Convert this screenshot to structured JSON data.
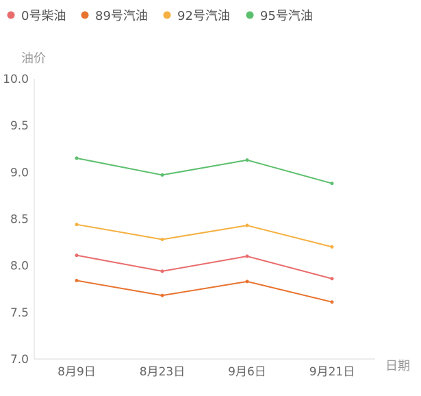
{
  "chart_data": {
    "type": "line",
    "title": "",
    "xlabel": "日期",
    "ylabel": "油价",
    "categories": [
      "8月9日",
      "8月23日",
      "9月6日",
      "9月21日"
    ],
    "ylim": [
      7.0,
      10.0
    ],
    "yticks": [
      "7.0",
      "7.5",
      "8.0",
      "8.5",
      "9.0",
      "9.5",
      "10.0"
    ],
    "grid": false,
    "legend_position": "top-left",
    "series": [
      {
        "name": "0号柴油",
        "color": "#e96c6c",
        "values": [
          8.11,
          7.94,
          8.1,
          7.86
        ]
      },
      {
        "name": "89号汽油",
        "color": "#e8732e",
        "values": [
          7.84,
          7.68,
          7.83,
          7.61
        ]
      },
      {
        "name": "92号汽油",
        "color": "#f5b041",
        "values": [
          8.44,
          8.28,
          8.43,
          8.2
        ]
      },
      {
        "name": "95号汽油",
        "color": "#5cbf6e",
        "values": [
          9.15,
          8.97,
          9.13,
          8.88
        ]
      }
    ],
    "colors": {
      "axis": "#d9d9d9",
      "tick_text": "#666666",
      "label_text": "#999999",
      "legend_text": "#555555"
    }
  }
}
